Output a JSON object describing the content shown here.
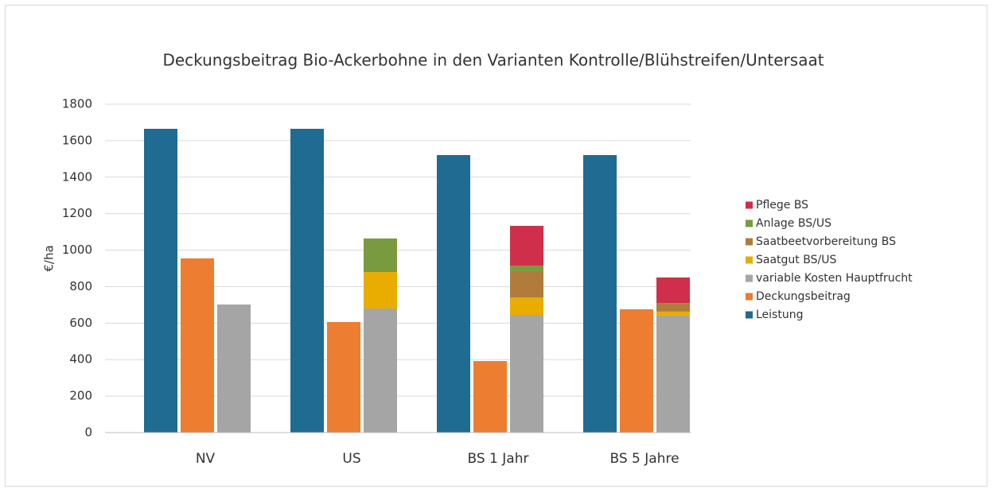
{
  "chart_data": {
    "type": "bar",
    "title": "Deckungsbeitrag Bio-Ackerbohne in den Varianten Kontrolle/Blühstreifen/Untersaat",
    "y_label": "€/ha",
    "categories": [
      "NV",
      "US",
      "BS 1 Jahr",
      "BS 5 Jahre"
    ],
    "series": [
      {
        "name": "Leistung",
        "color": "#1f6b91",
        "values": [
          1665,
          1665,
          1521,
          1521
        ]
      },
      {
        "name": "Deckungsbeitrag",
        "color": "#ed7d31",
        "values": [
          955,
          606,
          392,
          676
        ]
      },
      {
        "name": "variable Kosten Hauptfrucht",
        "color": "#a5a5a5",
        "values": [
          702,
          680,
          645,
          641
        ]
      },
      {
        "name": "Saatgut BS/US",
        "color": "#e8ad00",
        "values": [
          0,
          200,
          96,
          22
        ]
      },
      {
        "name": "Saatbeetvorbereitung BS",
        "color": "#b07c3c",
        "values": [
          0,
          0,
          144,
          43
        ]
      },
      {
        "name": "Anlage BS/US",
        "color": "#7a9a3f",
        "values": [
          0,
          184,
          30,
          4
        ]
      },
      {
        "name": "Pflege BS",
        "color": "#d02f4b",
        "values": [
          0,
          0,
          218,
          140
        ]
      }
    ],
    "ylim": [
      0,
      1800
    ],
    "yticks": [
      0,
      200,
      400,
      600,
      800,
      1000,
      1200,
      1400,
      1600,
      1800
    ],
    "grid": true,
    "legend": "right"
  }
}
